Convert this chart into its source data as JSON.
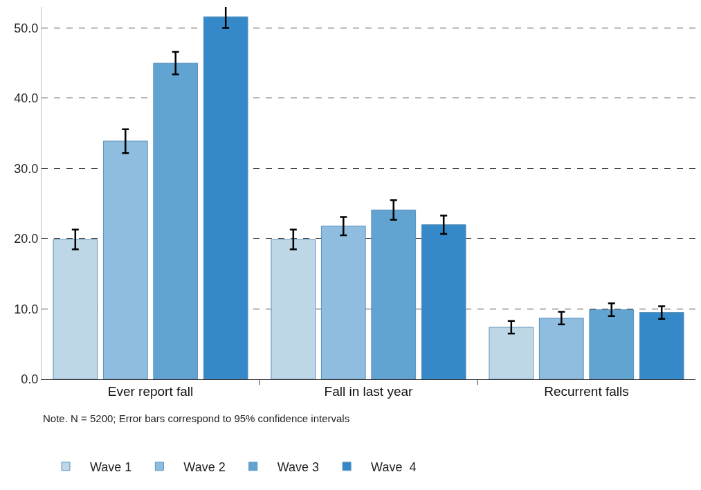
{
  "chart_data": {
    "type": "bar",
    "categories": [
      "Ever report fall",
      "Fall in last year",
      "Recurrent falls"
    ],
    "series": [
      {
        "name": "Wave 1",
        "color": "#bdd7e7",
        "values": [
          19.9,
          19.9,
          7.4
        ],
        "errors": [
          1.4,
          1.4,
          0.9
        ]
      },
      {
        "name": "Wave 2",
        "color": "#8fbde0",
        "values": [
          33.9,
          21.8,
          8.7
        ],
        "errors": [
          1.7,
          1.3,
          0.9
        ]
      },
      {
        "name": "Wave 3",
        "color": "#62a4d1",
        "values": [
          45.0,
          24.1,
          9.9
        ],
        "errors": [
          1.6,
          1.4,
          0.9
        ]
      },
      {
        "name": "Wave  4",
        "color": "#3589c8",
        "values": [
          51.6,
          22.0,
          9.5
        ],
        "errors": [
          1.6,
          1.3,
          0.9
        ]
      }
    ],
    "ylim": [
      0,
      53
    ],
    "yticks": [
      {
        "value": 0,
        "label": "0.0"
      },
      {
        "value": 10,
        "label": "10.0"
      },
      {
        "value": 20,
        "label": "20.0"
      },
      {
        "value": 30,
        "label": "30.0"
      },
      {
        "value": 40,
        "label": "40.0"
      },
      {
        "value": 50,
        "label": "50.0"
      }
    ],
    "grid": "y",
    "legend": "bottom left",
    "annotations": [
      "Note. N = 5200; Error bars correspond to 95% confidence intervals"
    ]
  }
}
